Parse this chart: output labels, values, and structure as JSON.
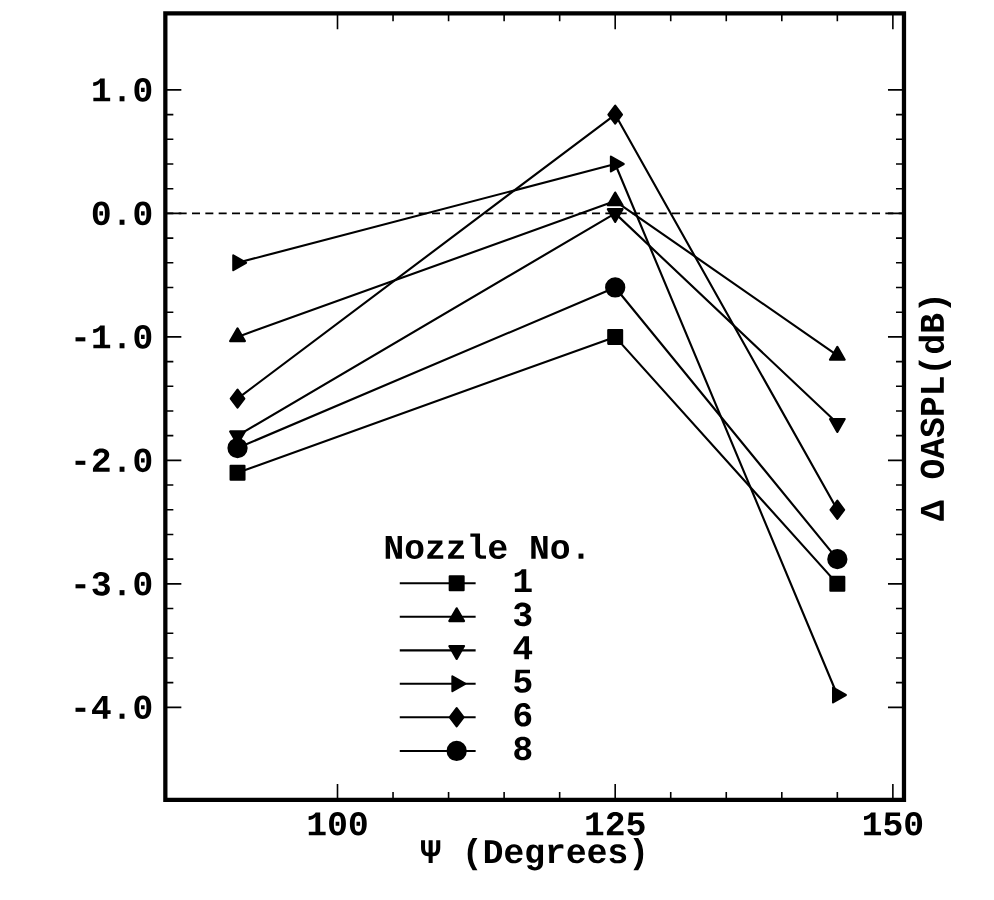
{
  "chart_data": {
    "type": "line",
    "xlabel": "Ψ (Degrees)",
    "ylabel": "Δ OASPL(dB)",
    "legend_title": "Nozzle No.",
    "legend": "bottom",
    "x": [
      91,
      125,
      145
    ],
    "xlim": [
      84.5,
      151
    ],
    "xticks": [
      100,
      125,
      150
    ],
    "ylim": [
      -4.75,
      1.62
    ],
    "yticks": [
      {
        "value": 1,
        "label": "1.0"
      },
      {
        "value": 0,
        "label": "0.0"
      },
      {
        "value": -1,
        "label": "-1.0"
      },
      {
        "value": -2,
        "label": "-2.0"
      },
      {
        "value": -3,
        "label": "-3.0"
      },
      {
        "value": -4,
        "label": "-4.0"
      }
    ],
    "grid": false,
    "line_style": "solid",
    "ref_lines": [
      {
        "axis": "y",
        "value": 0,
        "line_style": "dashed",
        "color": "#000000"
      }
    ],
    "series": [
      {
        "name": "1",
        "color": "#000000",
        "marker": "square",
        "values": [
          -2.1,
          -1.0,
          -3.0
        ]
      },
      {
        "name": "3",
        "color": "#000000",
        "marker": "triangle",
        "values": [
          -1.0,
          0.1,
          -1.15
        ]
      },
      {
        "name": "4",
        "color": "#000000",
        "marker": "triangle-down",
        "values": [
          -1.8,
          0.0,
          -1.7
        ]
      },
      {
        "name": "5",
        "color": "#000000",
        "marker": "triangle-right",
        "values": [
          -0.4,
          0.4,
          -3.9
        ]
      },
      {
        "name": "6",
        "color": "#000000",
        "marker": "diamond",
        "values": [
          -1.5,
          0.8,
          -2.4
        ]
      },
      {
        "name": "8",
        "color": "#000000",
        "marker": "circle",
        "values": [
          -1.9,
          -0.6,
          -2.8
        ]
      }
    ]
  }
}
